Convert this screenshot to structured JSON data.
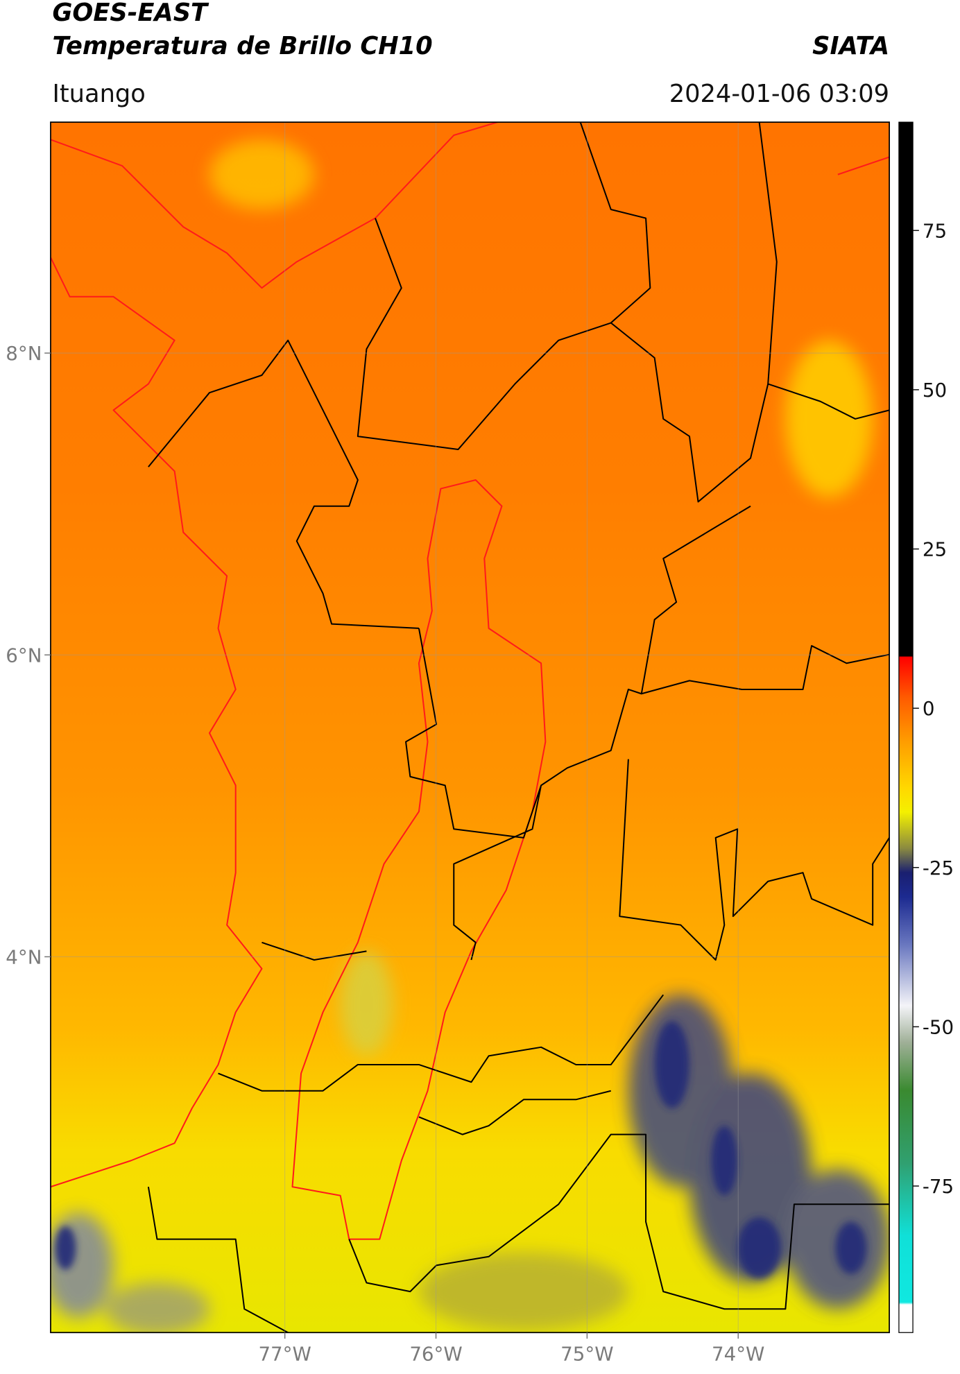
{
  "header": {
    "title": "GOES-EAST",
    "subtitle": "Temperatura de Brillo CH10",
    "source": "SIATA",
    "location": "Ituango",
    "datetime": "2024-01-06 03:09"
  },
  "map": {
    "xlim": [
      -78.55,
      -73.0
    ],
    "ylim": [
      1.51,
      9.53
    ],
    "xticks": [
      {
        "value": -77,
        "label": "77°W"
      },
      {
        "value": -76,
        "label": "76°W"
      },
      {
        "value": -75,
        "label": "75°W"
      },
      {
        "value": -74,
        "label": "74°W"
      }
    ],
    "yticks": [
      {
        "value": 8,
        "label": "8°N"
      },
      {
        "value": 6,
        "label": "6°N"
      },
      {
        "value": 4,
        "label": "4°N"
      }
    ],
    "grid": true
  },
  "colorbar": {
    "lim": [
      -98,
      92
    ],
    "ticks": [
      75,
      50,
      25,
      0,
      -25,
      -50,
      -75
    ]
  }
}
